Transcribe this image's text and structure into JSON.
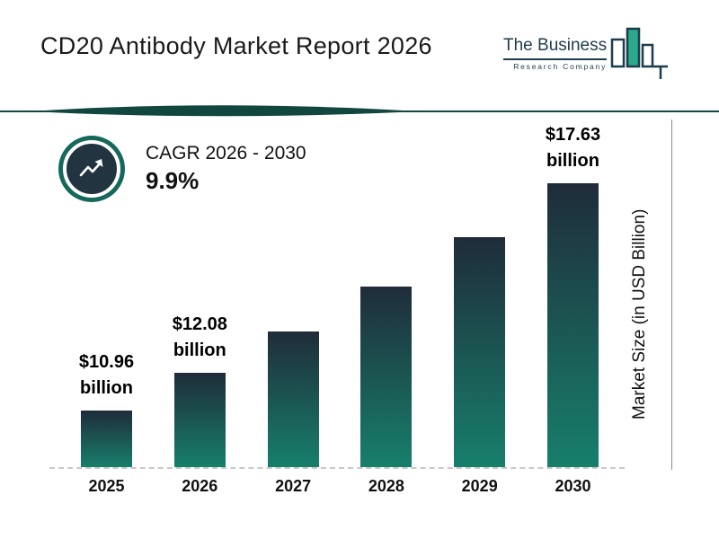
{
  "title": "CD20 Antibody Market Report 2026",
  "logo": {
    "line1": "The Business",
    "line2": "Research Company"
  },
  "cagr": {
    "label": "CAGR 2026 - 2030",
    "value": "9.9%"
  },
  "colors": {
    "accent_teal": "#15685c",
    "divider": "#11473f",
    "bar_top": "#1f2c39",
    "bar_bottom": "#177f6c",
    "logo_navy": "#1d3c4e",
    "logo_teal": "#2aa98c"
  },
  "chart_data": {
    "type": "bar",
    "title": "CD20 Antibody Market Report 2026",
    "categories": [
      "2025",
      "2026",
      "2027",
      "2028",
      "2029",
      "2030"
    ],
    "values": [
      10.96,
      12.08,
      13.28,
      14.59,
      16.04,
      17.63
    ],
    "annotations": {
      "0": [
        "$10.96",
        "billion"
      ],
      "1": [
        "$12.08",
        "billion"
      ],
      "5": [
        "$17.63",
        "billion"
      ]
    },
    "xlabel": "",
    "ylabel": "Market Size (in USD Billion)",
    "ylim": [
      9.3,
      18.0
    ],
    "grid": false,
    "legend": false,
    "baseline_style": "dashed"
  }
}
